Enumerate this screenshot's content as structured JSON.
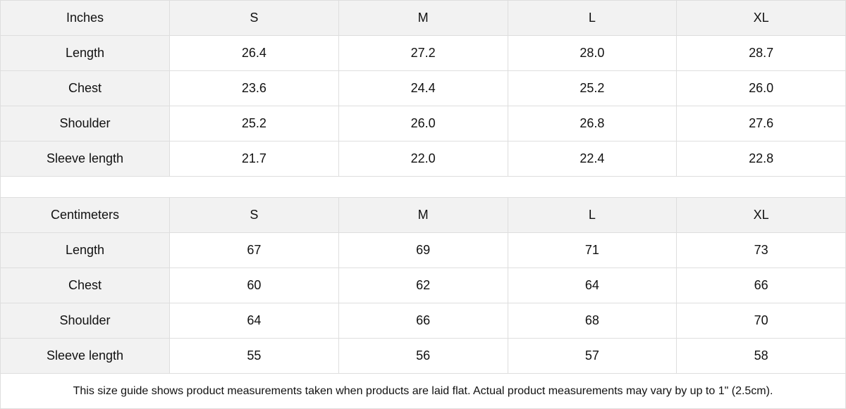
{
  "tables": [
    {
      "unit": "Inches",
      "sizes": [
        "S",
        "M",
        "L",
        "XL"
      ],
      "rows": [
        {
          "label": "Length",
          "values": [
            "26.4",
            "27.2",
            "28.0",
            "28.7"
          ]
        },
        {
          "label": "Chest",
          "values": [
            "23.6",
            "24.4",
            "25.2",
            "26.0"
          ]
        },
        {
          "label": "Shoulder",
          "values": [
            "25.2",
            "26.0",
            "26.8",
            "27.6"
          ]
        },
        {
          "label": "Sleeve length",
          "values": [
            "21.7",
            "22.0",
            "22.4",
            "22.8"
          ]
        }
      ]
    },
    {
      "unit": "Centimeters",
      "sizes": [
        "S",
        "M",
        "L",
        "XL"
      ],
      "rows": [
        {
          "label": "Length",
          "values": [
            "67",
            "69",
            "71",
            "73"
          ]
        },
        {
          "label": "Chest",
          "values": [
            "60",
            "62",
            "64",
            "66"
          ]
        },
        {
          "label": "Shoulder",
          "values": [
            "64",
            "66",
            "68",
            "70"
          ]
        },
        {
          "label": "Sleeve length",
          "values": [
            "55",
            "56",
            "57",
            "58"
          ]
        }
      ]
    }
  ],
  "note": "This size guide shows product measurements taken when products are laid flat.  Actual product measurements may vary by up to 1\" (2.5cm).",
  "colors": {
    "header_bg": "#f2f2f2",
    "border": "#dedede"
  }
}
